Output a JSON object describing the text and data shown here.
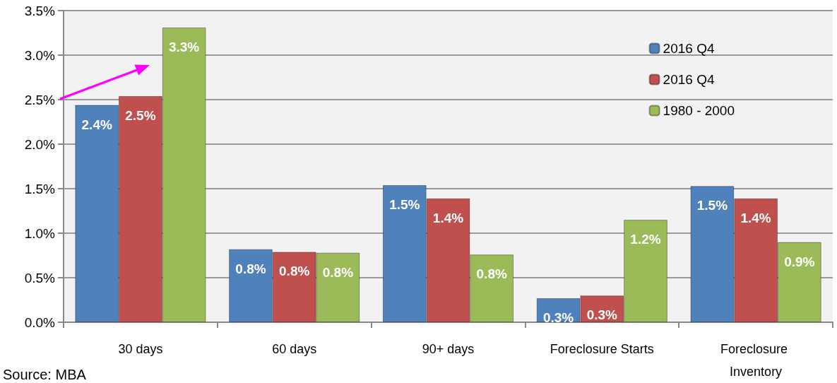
{
  "chart_data": {
    "type": "bar",
    "categories": [
      "30 days",
      "60 days",
      "90+ days",
      "Foreclosure Starts",
      "Foreclosure Inventory"
    ],
    "series": [
      {
        "name": "2016 Q4",
        "color": "#4f81bd",
        "values": [
          2.44,
          0.82,
          1.54,
          0.27,
          1.53
        ],
        "value_labels": [
          "2.4%",
          "0.8%",
          "1.5%",
          "0.3%",
          "1.5%"
        ]
      },
      {
        "name": "2016 Q4",
        "color": "#c0504d",
        "values": [
          2.54,
          0.79,
          1.39,
          0.3,
          1.39
        ],
        "value_labels": [
          "2.5%",
          "0.8%",
          "1.4%",
          "0.3%",
          "1.4%"
        ]
      },
      {
        "name": "1980 - 2000",
        "color": "#9bbb59",
        "values": [
          3.31,
          0.78,
          0.76,
          1.15,
          0.9
        ],
        "value_labels": [
          "3.3%",
          "0.8%",
          "0.8%",
          "1.2%",
          "0.9%"
        ]
      }
    ],
    "ylim": [
      0,
      3.5
    ],
    "yticks": [
      {
        "value": 0,
        "label": "0.0%"
      },
      {
        "value": 0.5,
        "label": "0.5%"
      },
      {
        "value": 1,
        "label": "1.0%"
      },
      {
        "value": 1.5,
        "label": "1.5%"
      },
      {
        "value": 2,
        "label": "2.0%"
      },
      {
        "value": 2.5,
        "label": "2.5%"
      },
      {
        "value": 3,
        "label": "3.0%"
      },
      {
        "value": 3.5,
        "label": "3.5%"
      }
    ],
    "grid": "y",
    "legend": "top right",
    "annotations": [
      "Source: MBA"
    ]
  }
}
